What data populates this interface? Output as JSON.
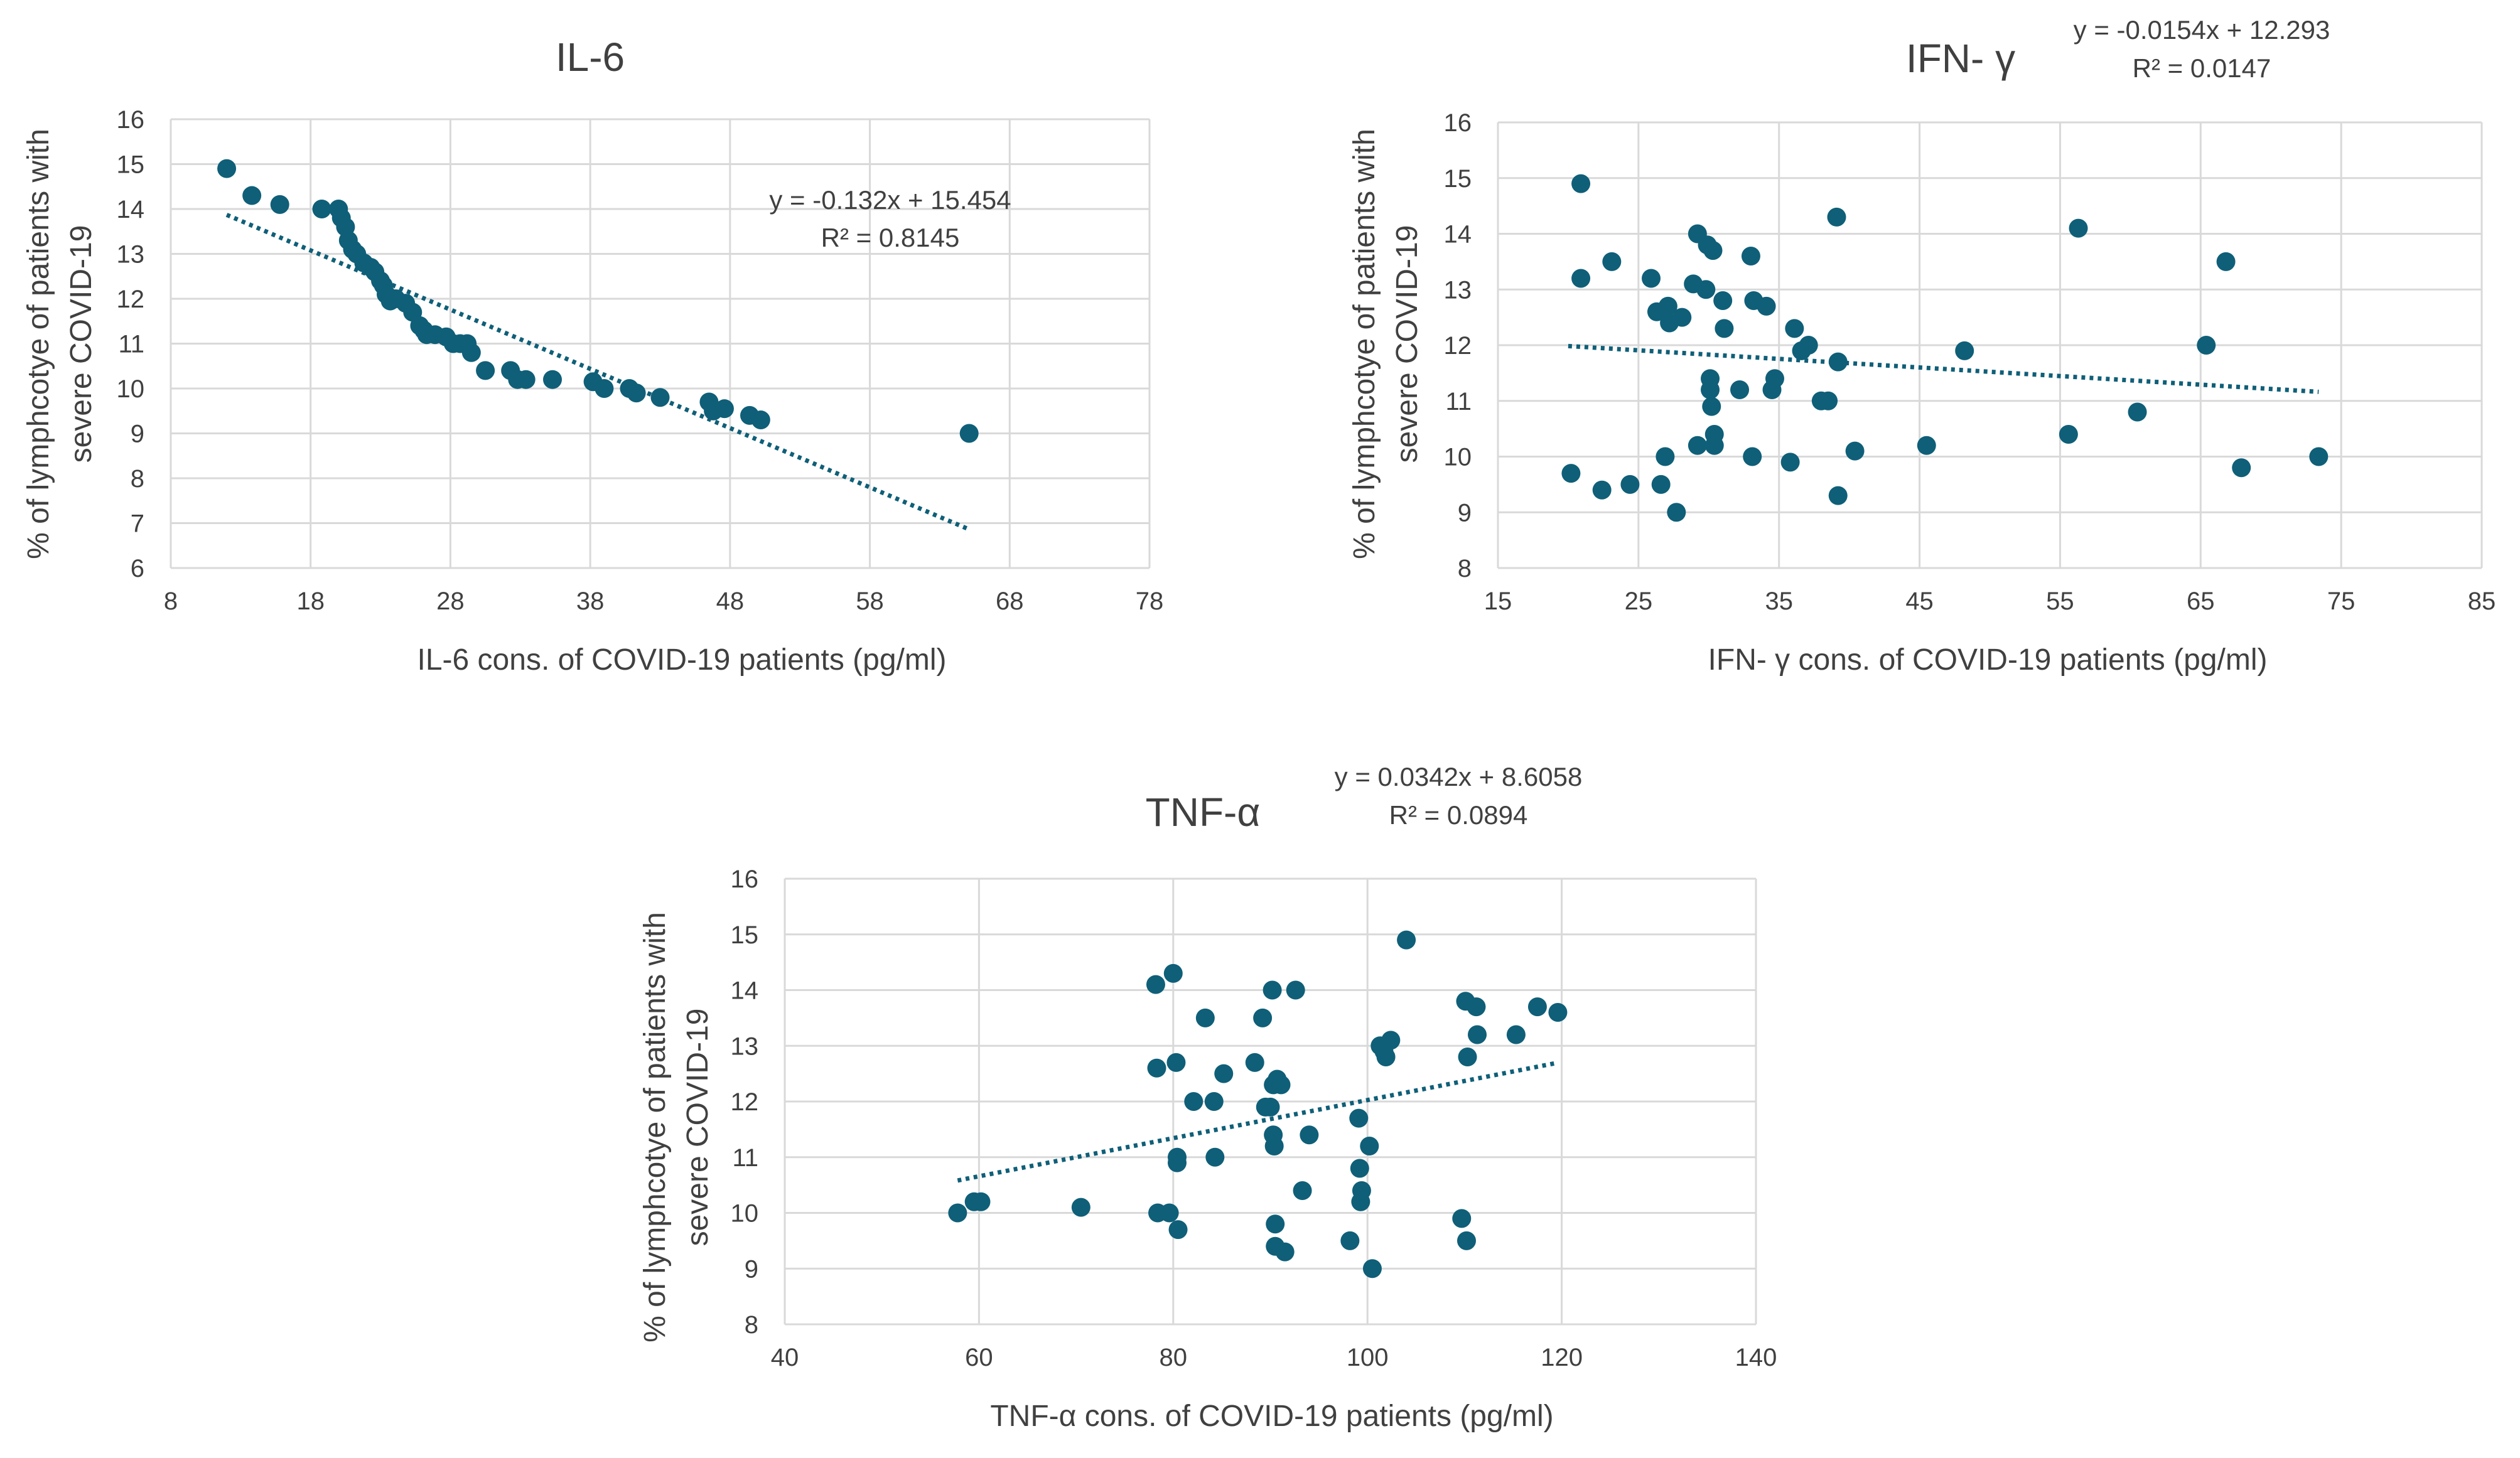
{
  "chart_data": [
    {
      "type": "scatter",
      "title": "IL-6",
      "xlabel": "IL-6 cons. of COVID-19 patients  (pg/ml)",
      "ylabel_line1": "% of lymphcotye of patients with",
      "ylabel_line2": "severe COVID-19",
      "xlim": [
        8,
        78
      ],
      "xticks": [
        8,
        18,
        28,
        38,
        48,
        58,
        68,
        78
      ],
      "ylim": [
        6,
        16
      ],
      "yticks": [
        6,
        7,
        8,
        9,
        10,
        11,
        12,
        13,
        14,
        15,
        16
      ],
      "equation": "y = -0.132x + 15.454",
      "r2_label": "R² = 0.8145",
      "trendline": {
        "slope": -0.132,
        "intercept": 15.454,
        "x_range": [
          12,
          65
        ]
      },
      "points": [
        [
          12,
          14.9
        ],
        [
          13.8,
          14.3
        ],
        [
          15.8,
          14.1
        ],
        [
          18.8,
          14.0
        ],
        [
          20,
          14.0
        ],
        [
          20.2,
          13.8
        ],
        [
          20.5,
          13.6
        ],
        [
          20.7,
          13.3
        ],
        [
          21,
          13.1
        ],
        [
          21.3,
          13.0
        ],
        [
          21.8,
          12.8
        ],
        [
          22.3,
          12.7
        ],
        [
          22.6,
          12.6
        ],
        [
          23,
          12.4
        ],
        [
          23.2,
          12.3
        ],
        [
          23.4,
          12.1
        ],
        [
          23.7,
          11.95
        ],
        [
          24.1,
          12.0
        ],
        [
          24.8,
          11.9
        ],
        [
          25.3,
          11.7
        ],
        [
          25.8,
          11.4
        ],
        [
          26.1,
          11.3
        ],
        [
          26.3,
          11.2
        ],
        [
          26.9,
          11.2
        ],
        [
          27.7,
          11.15
        ],
        [
          28.2,
          11.0
        ],
        [
          28.7,
          11.0
        ],
        [
          29.2,
          11.0
        ],
        [
          29.5,
          10.8
        ],
        [
          30.5,
          10.4
        ],
        [
          32.3,
          10.4
        ],
        [
          32.8,
          10.2
        ],
        [
          33.4,
          10.2
        ],
        [
          35.3,
          10.2
        ],
        [
          38.2,
          10.15
        ],
        [
          39,
          10.0
        ],
        [
          40.8,
          10.0
        ],
        [
          41.3,
          9.9
        ],
        [
          43,
          9.8
        ],
        [
          46.5,
          9.7
        ],
        [
          46.8,
          9.5
        ],
        [
          47.6,
          9.55
        ],
        [
          49.4,
          9.4
        ],
        [
          50.2,
          9.3
        ],
        [
          65.1,
          9.0
        ]
      ]
    },
    {
      "type": "scatter",
      "title": "IFN- γ",
      "xlabel": "IFN- γ cons. of COVID-19 patients  (pg/ml)",
      "ylabel_line1": "% of lymphcotye of patients with",
      "ylabel_line2": "severe COVID-19",
      "xlim": [
        15,
        85
      ],
      "xticks": [
        15,
        25,
        35,
        45,
        55,
        65,
        75,
        85
      ],
      "ylim": [
        8,
        16
      ],
      "yticks": [
        8,
        9,
        10,
        11,
        12,
        13,
        14,
        15,
        16
      ],
      "equation": "y = -0.0154x + 12.293",
      "r2_label": "R² = 0.0147",
      "trendline": {
        "slope": -0.0154,
        "intercept": 12.293,
        "x_range": [
          20,
          73.4
        ]
      },
      "points": [
        [
          20.2,
          9.7
        ],
        [
          20.9,
          14.9
        ],
        [
          20.9,
          13.2
        ],
        [
          22.4,
          9.4
        ],
        [
          23.1,
          13.5
        ],
        [
          24.4,
          9.5
        ],
        [
          25.9,
          13.2
        ],
        [
          26.3,
          12.6
        ],
        [
          26.6,
          9.5
        ],
        [
          26.9,
          10.0
        ],
        [
          27.1,
          12.7
        ],
        [
          27.2,
          12.4
        ],
        [
          27.7,
          9.0
        ],
        [
          28.1,
          12.5
        ],
        [
          28.9,
          13.1
        ],
        [
          29.2,
          14.0
        ],
        [
          29.2,
          10.2
        ],
        [
          29.8,
          13.0
        ],
        [
          29.9,
          13.8
        ],
        [
          30.1,
          11.4
        ],
        [
          30.1,
          11.2
        ],
        [
          30.2,
          10.9
        ],
        [
          30.3,
          13.7
        ],
        [
          30.4,
          10.2
        ],
        [
          30.4,
          10.4
        ],
        [
          31,
          12.8
        ],
        [
          31.1,
          12.3
        ],
        [
          32.2,
          11.2
        ],
        [
          33,
          13.6
        ],
        [
          33.1,
          10.0
        ],
        [
          33.2,
          12.8
        ],
        [
          34.1,
          12.7
        ],
        [
          34.5,
          11.2
        ],
        [
          34.7,
          11.4
        ],
        [
          35.8,
          9.9
        ],
        [
          36.1,
          12.3
        ],
        [
          36.6,
          11.9
        ],
        [
          37.1,
          12.0
        ],
        [
          38,
          11.0
        ],
        [
          38.5,
          11.0
        ],
        [
          39.1,
          14.3
        ],
        [
          39.2,
          11.7
        ],
        [
          39.2,
          9.3
        ],
        [
          40.4,
          10.1
        ],
        [
          45.5,
          10.2
        ],
        [
          48.2,
          11.9
        ],
        [
          55.6,
          10.4
        ],
        [
          56.3,
          14.1
        ],
        [
          60.5,
          10.8
        ],
        [
          65.4,
          12.0
        ],
        [
          66.8,
          13.5
        ],
        [
          67.9,
          9.8
        ],
        [
          73.4,
          10.0
        ]
      ]
    },
    {
      "type": "scatter",
      "title": "TNF-α",
      "xlabel": "TNF-α  cons. of COVID-19 patients (pg/ml)",
      "ylabel_line1": "% of lymphcotye of patients with",
      "ylabel_line2": "severe COVID-19",
      "xlim": [
        40,
        140
      ],
      "xticks": [
        40,
        60,
        80,
        100,
        120,
        140
      ],
      "ylim": [
        8,
        16
      ],
      "yticks": [
        8,
        9,
        10,
        11,
        12,
        13,
        14,
        15,
        16
      ],
      "equation": "y = 0.0342x + 8.6058",
      "r2_label": "R² = 0.0894",
      "trendline": {
        "slope": 0.0342,
        "intercept": 8.6058,
        "x_range": [
          57.8,
          119.6
        ]
      },
      "points": [
        [
          57.8,
          10.0
        ],
        [
          59.5,
          10.2
        ],
        [
          60.2,
          10.2
        ],
        [
          70.5,
          10.1
        ],
        [
          78.2,
          14.1
        ],
        [
          78.3,
          12.6
        ],
        [
          78.4,
          10.0
        ],
        [
          79.6,
          10.0
        ],
        [
          80,
          14.3
        ],
        [
          80.3,
          12.7
        ],
        [
          80.4,
          11.0
        ],
        [
          80.4,
          10.9
        ],
        [
          80.5,
          9.7
        ],
        [
          82.1,
          12.0
        ],
        [
          83.3,
          13.5
        ],
        [
          84.2,
          12.0
        ],
        [
          84.3,
          11.0
        ],
        [
          85.2,
          12.5
        ],
        [
          88.4,
          12.7
        ],
        [
          89.2,
          13.5
        ],
        [
          89.5,
          11.9
        ],
        [
          90,
          11.9
        ],
        [
          90.2,
          14.0
        ],
        [
          90.3,
          12.3
        ],
        [
          90.3,
          11.4
        ],
        [
          90.4,
          11.2
        ],
        [
          90.5,
          9.8
        ],
        [
          90.5,
          9.4
        ],
        [
          90.7,
          12.4
        ],
        [
          91.1,
          12.3
        ],
        [
          91.5,
          9.3
        ],
        [
          92.6,
          14.0
        ],
        [
          93.3,
          10.4
        ],
        [
          94,
          11.4
        ],
        [
          98.2,
          9.5
        ],
        [
          99.1,
          11.7
        ],
        [
          99.2,
          10.8
        ],
        [
          99.3,
          10.2
        ],
        [
          99.4,
          10.4
        ],
        [
          100.2,
          11.2
        ],
        [
          100.5,
          9.0
        ],
        [
          101.3,
          13.0
        ],
        [
          101.7,
          12.9
        ],
        [
          101.9,
          12.8
        ],
        [
          102.4,
          13.1
        ],
        [
          104,
          14.9
        ],
        [
          109.7,
          9.9
        ],
        [
          110.1,
          13.8
        ],
        [
          110.2,
          9.5
        ],
        [
          110.3,
          12.8
        ],
        [
          111.2,
          13.7
        ],
        [
          111.3,
          13.2
        ],
        [
          115.3,
          13.2
        ],
        [
          117.5,
          13.7
        ],
        [
          119.6,
          13.6
        ]
      ]
    }
  ]
}
